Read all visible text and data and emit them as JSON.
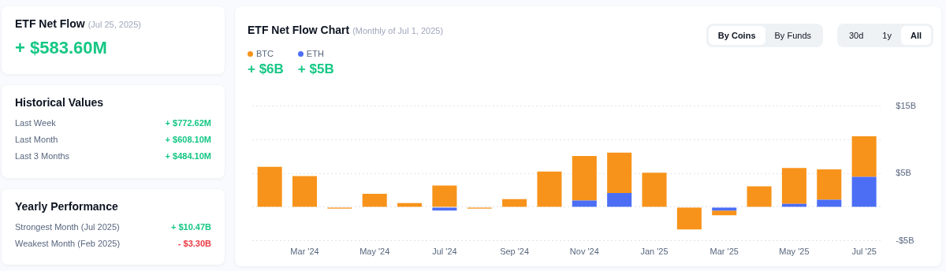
{
  "chart_data": [
    {
      "type": "other",
      "title": "ETF Net Flow",
      "subtitle": "(Jul 25, 2025)",
      "annotations": [
        "+ $583.60M"
      ],
      "colors": [
        "#16c784"
      ]
    },
    {
      "type": "other",
      "title": "Historical Values",
      "annotations": [
        "Last Week",
        "+ $772.62M",
        "Last Month",
        "+ $608.10M",
        "Last 3 Months",
        "+ $484.10M"
      ],
      "colors": [
        "#16c784",
        "#16c784",
        "#16c784"
      ]
    },
    {
      "type": "other",
      "title": "Yearly Performance",
      "annotations": [
        "Strongest Month (Jul 2025)",
        "+ $10.47B",
        "Weakest Month (Feb 2025)",
        "- $3.30B"
      ],
      "colors": [
        "#16c784",
        "#ea3943"
      ]
    },
    {
      "type": "bar",
      "title": "ETF Net Flow Chart",
      "subtitle": "(Monthly of Jul 1, 2025)",
      "stacked": true,
      "categories": [
        null,
        "Mar '24",
        null,
        "May '24",
        null,
        "Jul '24",
        null,
        "Sep '24",
        null,
        "Nov '24",
        null,
        "Jan '25",
        null,
        "Mar '25",
        null,
        "May '25",
        null,
        "Jul '25"
      ],
      "series": [
        {
          "name": "ETH",
          "color": "#4c6ef5",
          "values": [
            null,
            null,
            null,
            null,
            null,
            -0.5,
            null,
            null,
            null,
            1.0,
            2.1,
            null,
            null,
            -0.5,
            null,
            0.5,
            1.1,
            4.5
          ]
        },
        {
          "name": "BTC",
          "color": "#f7931a",
          "values": [
            6.0,
            4.6,
            -0.2,
            2.0,
            0.6,
            3.2,
            -0.2,
            1.2,
            5.3,
            6.6,
            6.0,
            5.1,
            -3.3,
            -0.7,
            3.1,
            5.3,
            4.5,
            6.0
          ]
        }
      ],
      "ylim": [
        -5,
        15
      ],
      "yticks": [
        {
          "value": 15,
          "label": "$15B"
        },
        {
          "value": 10,
          "label": null
        },
        {
          "value": 5,
          "label": "$5B"
        },
        {
          "value": 0,
          "label": null
        },
        {
          "value": -5,
          "label": "-$5B"
        }
      ],
      "grid": "y",
      "legend": "top left",
      "annotations": [
        "+ $6B",
        "+ $5B",
        "By Coins",
        "By Funds",
        "30d",
        "1y",
        "All"
      ]
    }
  ]
}
